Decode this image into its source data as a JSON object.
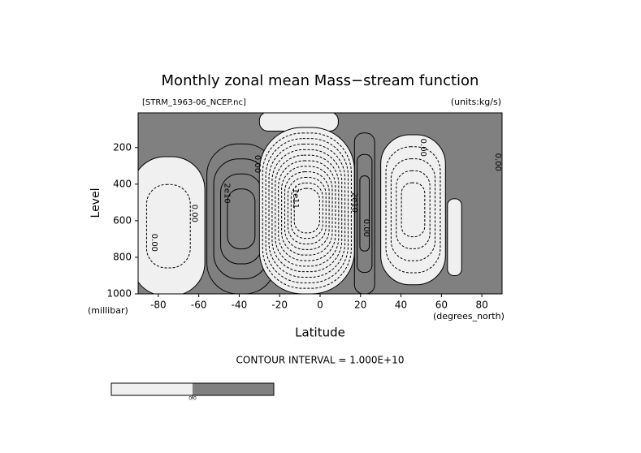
{
  "chart_data": {
    "type": "contour",
    "title": "Monthly zonal mean Mass−stream function",
    "subtitle_left": "[STRM_1963-06_NCEP.nc]",
    "subtitle_right": "(units:kg/s)",
    "xlabel": "Latitude",
    "xunit": "(degrees_north)",
    "ylabel": "Level",
    "yunit": "(millibar)",
    "annotation": "CONTOUR INTERVAL = 1.000E+10",
    "xlim": [
      -90,
      90
    ],
    "xticks": [
      -80,
      -60,
      -40,
      -20,
      0,
      20,
      40,
      60,
      80
    ],
    "ylim": [
      1000,
      10
    ],
    "yticks": [
      200,
      400,
      600,
      800,
      1000
    ],
    "colors": {
      "negative": "#f0f0f0",
      "positive": "#808080"
    },
    "cells": [
      {
        "lat": [
          -93,
          -57
        ],
        "lev": [
          250,
          1010
        ],
        "levels": [
          0,
          -10000000000
        ]
      },
      {
        "lat": [
          -56,
          -22
        ],
        "lev": [
          180,
          1000
        ],
        "levels": [
          10000000000,
          20000000000,
          30000000000,
          40000000000
        ]
      },
      {
        "lat": [
          -30,
          9
        ],
        "lev": [
          5,
          110
        ],
        "levels": [
          0
        ]
      },
      {
        "lat": [
          -30,
          17
        ],
        "lev": [
          90,
          1000
        ],
        "levels": [
          0,
          -10000000000,
          -20000000000,
          -30000000000,
          -40000000000,
          -50000000000,
          -60000000000,
          -70000000000,
          -80000000000,
          -90000000000,
          -100000000000,
          -110000000000
        ]
      },
      {
        "lat": [
          17,
          27
        ],
        "lev": [
          120,
          1000
        ],
        "levels": [
          10000000000,
          20000000000,
          30000000000
        ]
      },
      {
        "lat": [
          30,
          62
        ],
        "lev": [
          130,
          950
        ],
        "levels": [
          0,
          -10000000000,
          -20000000000,
          -30000000000,
          -40000000000
        ]
      },
      {
        "lat": [
          63,
          70
        ],
        "lev": [
          480,
          900
        ],
        "levels": [
          0
        ]
      }
    ],
    "contour_labels": [
      {
        "lat": -82,
        "lev": 720,
        "value": 0,
        "label": "0.00"
      },
      {
        "lat": -62,
        "lev": 560,
        "value": 0,
        "label": "0.00"
      },
      {
        "lat": -46,
        "lev": 450,
        "value": 20000000000,
        "label": "2e10"
      },
      {
        "lat": -31,
        "lev": 290,
        "value": 0,
        "label": "0.00"
      },
      {
        "lat": -12,
        "lev": 470,
        "value": -100000000000,
        "label": "-1e11"
      },
      {
        "lat": 17,
        "lev": 500,
        "value": 20000000000,
        "label": "2e10"
      },
      {
        "lat": 23,
        "lev": 640,
        "value": 0,
        "label": "0.00"
      },
      {
        "lat": 51,
        "lev": 200,
        "value": 0,
        "label": "0.00"
      },
      {
        "lat": 88,
        "lev": 280,
        "value": 0,
        "label": "0.00"
      }
    ],
    "colorbar": {
      "ticks": [
        {
          "value": 0,
          "label": "0.0"
        }
      ]
    }
  }
}
